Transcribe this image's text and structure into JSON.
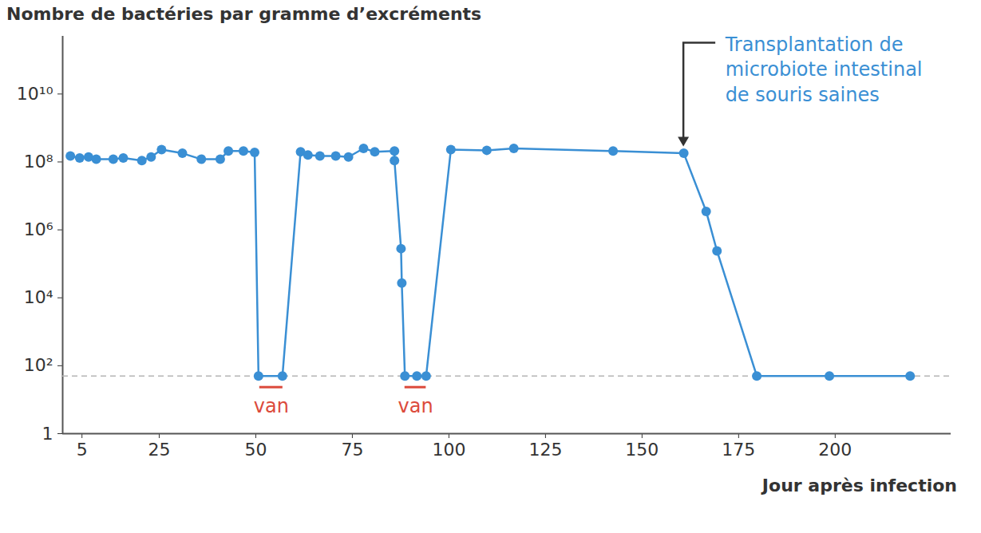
{
  "chart_data": {
    "type": "line",
    "y_label": "Nombre de bactéries par gramme d’excréments",
    "x_label": "Jour après infection",
    "log": "y",
    "grid": false,
    "xlim": [
      0,
      230
    ],
    "xticks": [
      5,
      25,
      50,
      75,
      100,
      125,
      150,
      175,
      200
    ],
    "ylim": [
      1,
      500000000000
    ],
    "yticks": [
      1,
      {
        "value": 100,
        "label": "10²"
      },
      {
        "value": 10000,
        "label": "10⁴"
      },
      {
        "value": 1000000,
        "label": "10⁶"
      },
      {
        "value": 100000000,
        "label": "10⁸"
      },
      {
        "value": 10000000000,
        "label": "10¹⁰"
      }
    ],
    "x": [
      2,
      4.4,
      6.7,
      8.7,
      13.1,
      15.7,
      20.5,
      22.9,
      25.6,
      31,
      35.9,
      40.8,
      42.9,
      46.8,
      49.7,
      50.7,
      56.9,
      61.6,
      63.5,
      66.6,
      70.7,
      74,
      77.9,
      80.8,
      85.9,
      85.9,
      87.6,
      87.8,
      88.6,
      91.7,
      94.1,
      100.5,
      109.8,
      116.8,
      142.5,
      160.8,
      166.6,
      169.4,
      179.7,
      198.5,
      219.4
    ],
    "series": [
      {
        "color": "#3a8fd4",
        "marker": "circle",
        "values": [
          150000000,
          130000000,
          140000000,
          120000000,
          120000000,
          130000000,
          110000000,
          140000000,
          230000000,
          180000000,
          120000000,
          120000000,
          210000000,
          210000000,
          190000000,
          50,
          50,
          200000000,
          160000000,
          150000000,
          150000000,
          140000000,
          250000000,
          200000000,
          210000000,
          110000000,
          280000,
          27000,
          50,
          50,
          50,
          230000000,
          220000000,
          250000000,
          210000000,
          180000000,
          3500000,
          240000,
          50,
          50,
          50
        ]
      }
    ],
    "threshold": {
      "value": 50,
      "color": "#b5b5b5",
      "line_style": "dashed"
    },
    "annotations": [
      {
        "text": "van",
        "x": [
          51,
          57
        ],
        "color": "#dc4a3b"
      },
      {
        "text": "van",
        "x": [
          88.6,
          94.1
        ],
        "color": "#dc4a3b"
      },
      {
        "text": "Transplantation de\nmicrobiote intestinal\nde souris saines",
        "x": 160.8,
        "y": 180000000,
        "color": "#3a8fd4"
      }
    ]
  }
}
